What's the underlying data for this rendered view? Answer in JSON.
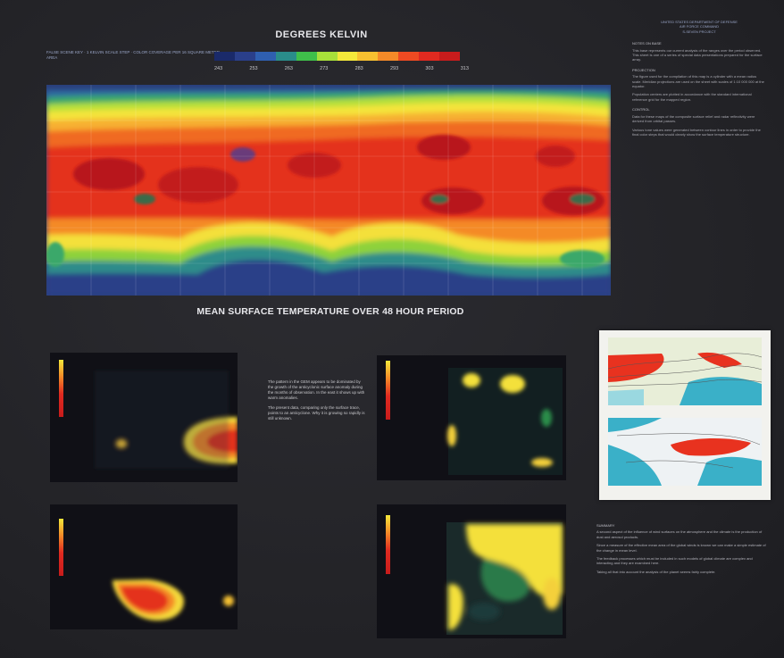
{
  "header": {
    "title": "DEGREES KELVIN",
    "note": "FALSE SCENE KEY · 1 KELVIN SCALE STEP · COLOR COVERAGE PER 16 SQUARE METER AREA"
  },
  "color_scale": {
    "colors": [
      "#1a2a6a",
      "#2a3f8a",
      "#2f5fb0",
      "#2a8c8a",
      "#3fbf4a",
      "#a8e03a",
      "#f4e83a",
      "#f7c030",
      "#f48a28",
      "#ee4a22",
      "#e02a20",
      "#c81c1c"
    ],
    "ticks": [
      "243",
      "253",
      "263",
      "273",
      "283",
      "293",
      "303",
      "313"
    ]
  },
  "main_map": {
    "caption": "MEAN SURFACE TEMPERATURE OVER 48 HOUR PERIOD"
  },
  "panel_description": {
    "paragraphs": [
      "The pattern in the GEM appears to be dominated by the growth of the anticyclonic surface anomaly during the months of observation. In the east it shows up with warm anomalies.",
      "The present data, comparing only the surface trace, points to an anticyclone. Why it is growing so rapidly is still unknown."
    ]
  },
  "right_column": {
    "org_lines": [
      "UNITED STATES DEPARTMENT OF DEFENSE",
      "AIR FORCE COMMAND",
      "S-SEVEN PROJECT"
    ],
    "sections": [
      {
        "head": "NOTES ON BASE",
        "text": "This base represents our current analysis of the ranges over the period observed. This sheet is one of a series of special data presentations prepared for the surface array."
      },
      {
        "head": "PROJECTION",
        "text": "The figure used for the compilation of this map is a cylinder with a mean radius scale. Meridian projections are used on the sheet with scales of 1:10 000 000 at the equator."
      },
      {
        "head": "",
        "text": "Population centers are plotted in accordance with the standard international reference grid for the mapped region."
      },
      {
        "head": "CONTROL",
        "text": "Data for these maps of the composite surface relief and radar reflectivity were derived from orbital passes."
      },
      {
        "head": "",
        "text": "Various tone values were generated between contour lines in order to provide the final color steps that would clearly show the surface temperature structure."
      }
    ]
  },
  "summary": {
    "head": "SUMMARY",
    "paragraphs": [
      "A second aspect of the influence of wind surfaces on the atmosphere and the climate is the production of dust and aerosol products.",
      "Since a measure of the effective mean area of the global winds is known we can make a simple estimate of the change in mean level.",
      "The feedback processes which must be included in such models of global climate are complex and interacting and they are examined here.",
      "Taking all that into account the analysis of the planet seems fairly complete."
    ]
  }
}
